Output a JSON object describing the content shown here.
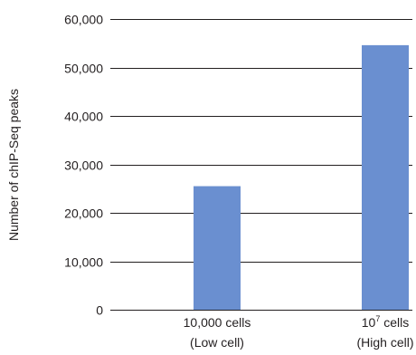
{
  "chart_data": {
    "type": "bar",
    "ylabel": "Number of chIP-Seq peaks",
    "xlabel": "",
    "ylim": [
      0,
      60000
    ],
    "yticks": [
      0,
      10000,
      20000,
      30000,
      40000,
      50000,
      60000
    ],
    "ytick_labels": [
      "0",
      "10,000",
      "20,000",
      "30,000",
      "40,000",
      "50,000",
      "60,000"
    ],
    "categories": [
      {
        "line1": "10,000 cells",
        "line2": "(Low cell)",
        "line1_sup": ""
      },
      {
        "line1": "10",
        "line1_sup": "7",
        "line1_after": " cells",
        "line2": "(High cell)"
      }
    ],
    "values": [
      25500,
      54600
    ],
    "grid": true,
    "bar_color": "#6a8fd0",
    "grid_color": "#231f20"
  }
}
